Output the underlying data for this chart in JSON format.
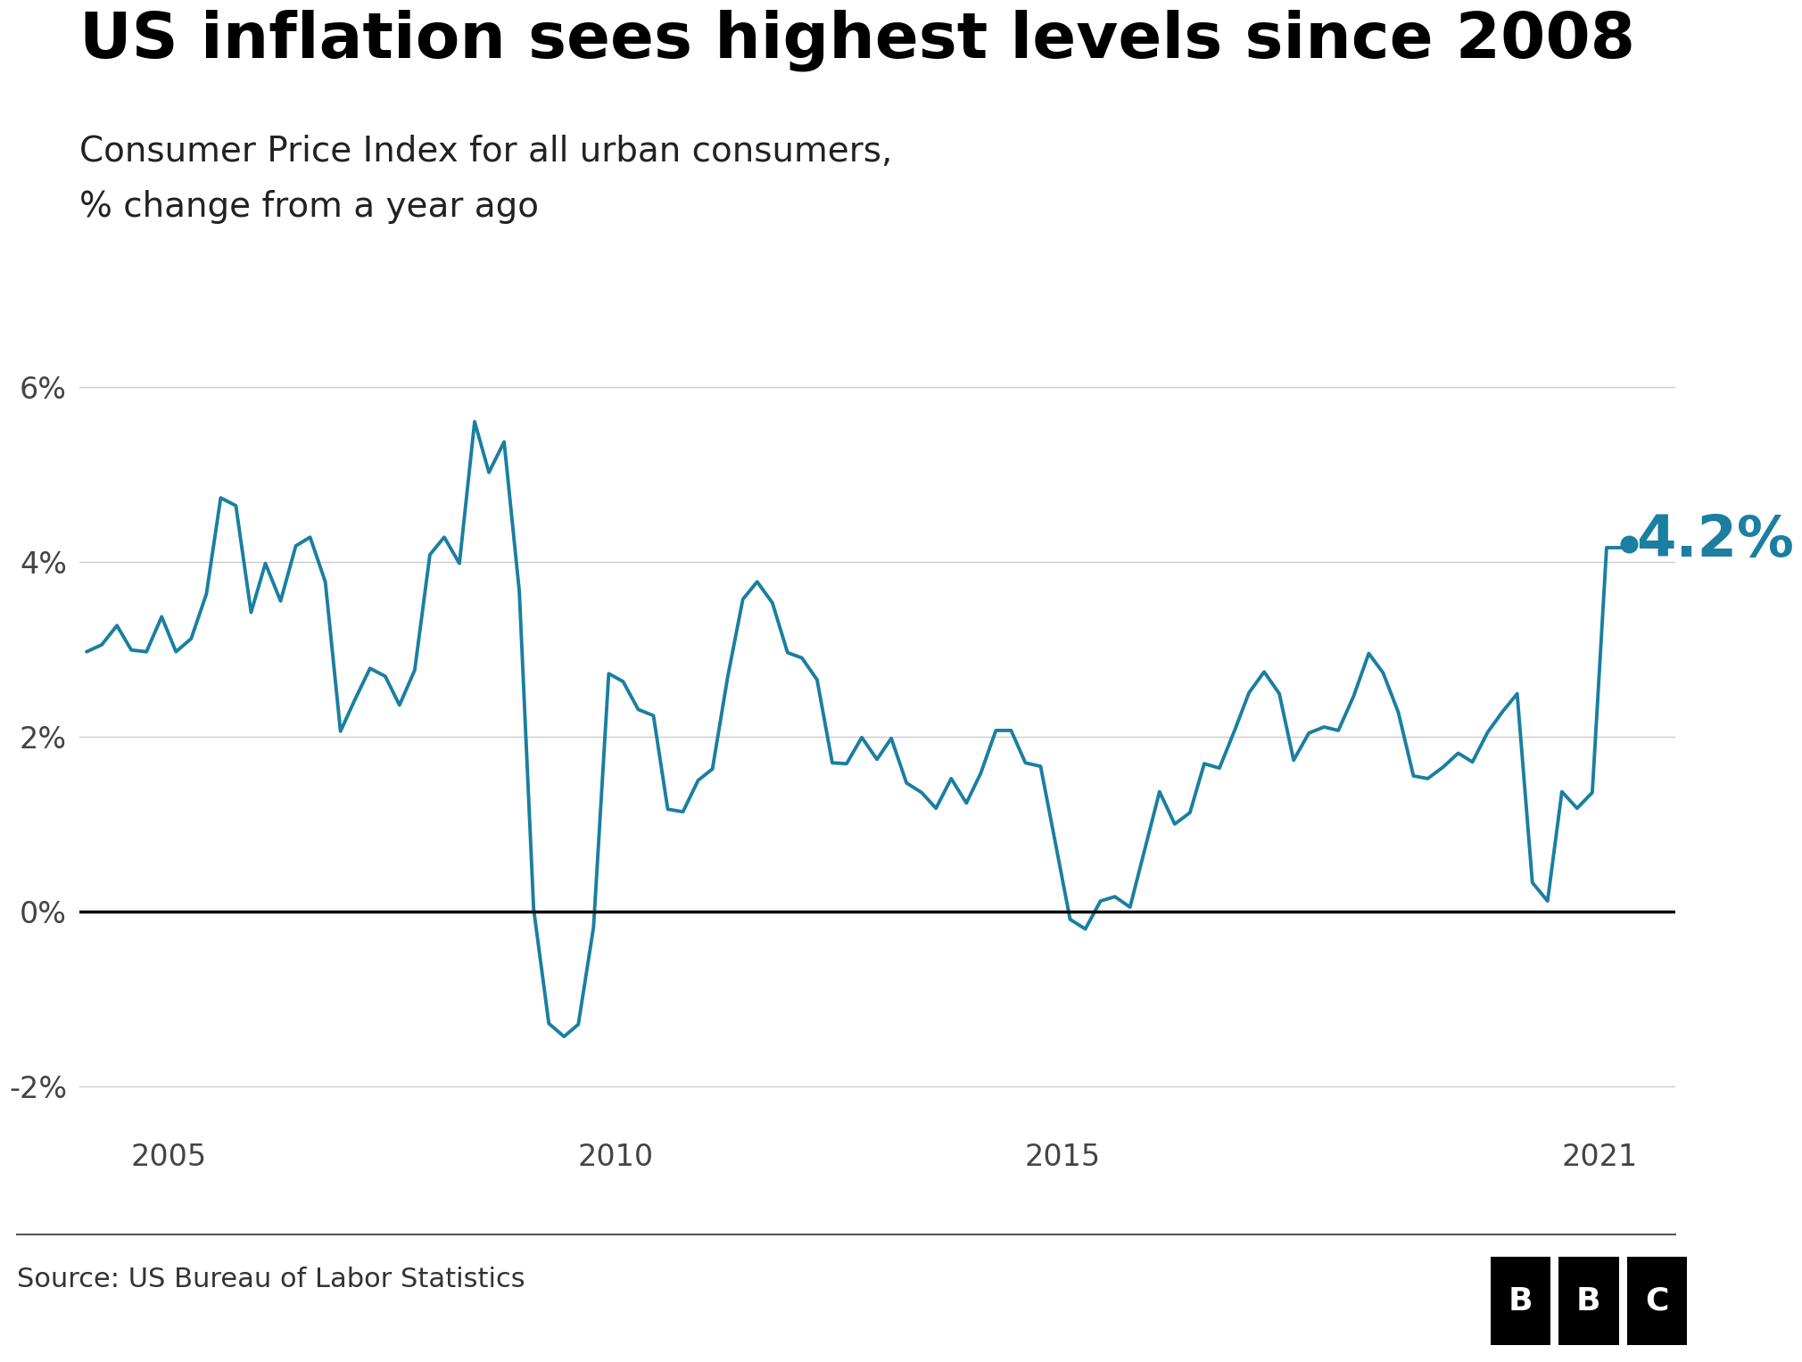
{
  "title": "US inflation sees highest levels since 2008",
  "subtitle_line1": "Consumer Price Index for all urban consumers,",
  "subtitle_line2": "% change from a year ago",
  "source": "Source: US Bureau of Labor Statistics",
  "annotation_label": "4.2%",
  "annotation_color": "#1a7fa0",
  "line_color": "#1a7fa0",
  "background_color": "#ffffff",
  "ylim": [
    -2.5,
    6.5
  ],
  "yticks": [
    -2,
    0,
    2,
    4,
    6
  ],
  "ytick_labels": [
    "-2%",
    "0%",
    "2%",
    "4%",
    "6%"
  ],
  "zero_line_color": "#000000",
  "grid_color": "#cccccc",
  "dates": [
    2004.08,
    2004.25,
    2004.42,
    2004.58,
    2004.75,
    2004.92,
    2005.08,
    2005.25,
    2005.42,
    2005.58,
    2005.75,
    2005.92,
    2006.08,
    2006.25,
    2006.42,
    2006.58,
    2006.75,
    2006.92,
    2007.08,
    2007.25,
    2007.42,
    2007.58,
    2007.75,
    2007.92,
    2008.08,
    2008.25,
    2008.42,
    2008.58,
    2008.75,
    2008.92,
    2009.08,
    2009.25,
    2009.42,
    2009.58,
    2009.75,
    2009.92,
    2010.08,
    2010.25,
    2010.42,
    2010.58,
    2010.75,
    2010.92,
    2011.08,
    2011.25,
    2011.42,
    2011.58,
    2011.75,
    2011.92,
    2012.08,
    2012.25,
    2012.42,
    2012.58,
    2012.75,
    2012.92,
    2013.08,
    2013.25,
    2013.42,
    2013.58,
    2013.75,
    2013.92,
    2014.08,
    2014.25,
    2014.42,
    2014.58,
    2014.75,
    2014.92,
    2015.08,
    2015.25,
    2015.42,
    2015.58,
    2015.75,
    2015.92,
    2016.08,
    2016.25,
    2016.42,
    2016.58,
    2016.75,
    2016.92,
    2017.08,
    2017.25,
    2017.42,
    2017.58,
    2017.75,
    2017.92,
    2018.08,
    2018.25,
    2018.42,
    2018.58,
    2018.75,
    2018.92,
    2019.08,
    2019.25,
    2019.42,
    2019.58,
    2019.75,
    2019.92,
    2020.08,
    2020.25,
    2020.42,
    2020.58,
    2020.75,
    2020.92,
    2021.08,
    2021.25,
    2021.33
  ],
  "values": [
    2.97,
    3.05,
    3.27,
    2.99,
    2.97,
    3.37,
    2.97,
    3.12,
    3.63,
    4.73,
    4.64,
    3.42,
    3.98,
    3.55,
    4.18,
    4.28,
    3.77,
    2.06,
    2.42,
    2.78,
    2.69,
    2.36,
    2.76,
    4.08,
    4.28,
    3.98,
    5.6,
    5.02,
    5.37,
    3.66,
    0.03,
    -1.28,
    -1.43,
    -1.29,
    -0.18,
    2.72,
    2.63,
    2.31,
    2.24,
    1.17,
    1.14,
    1.5,
    1.63,
    2.68,
    3.57,
    3.77,
    3.53,
    2.96,
    2.9,
    2.65,
    1.7,
    1.69,
    1.99,
    1.74,
    1.98,
    1.47,
    1.36,
    1.18,
    1.52,
    1.24,
    1.58,
    2.07,
    2.07,
    1.7,
    1.66,
    0.76,
    -0.09,
    -0.2,
    0.12,
    0.17,
    0.05,
    0.73,
    1.37,
    1.0,
    1.13,
    1.69,
    1.64,
    2.07,
    2.5,
    2.74,
    2.49,
    1.73,
    2.04,
    2.11,
    2.07,
    2.46,
    2.95,
    2.73,
    2.28,
    1.55,
    1.52,
    1.65,
    1.81,
    1.71,
    2.05,
    2.29,
    2.49,
    0.33,
    0.12,
    1.37,
    1.18,
    1.36,
    4.16,
    4.16,
    4.2
  ],
  "xticks": [
    2005,
    2010,
    2015,
    2021
  ],
  "xtick_labels": [
    "2005",
    "2010",
    "2015",
    "2021"
  ],
  "xlim": [
    2004.0,
    2021.85
  ]
}
